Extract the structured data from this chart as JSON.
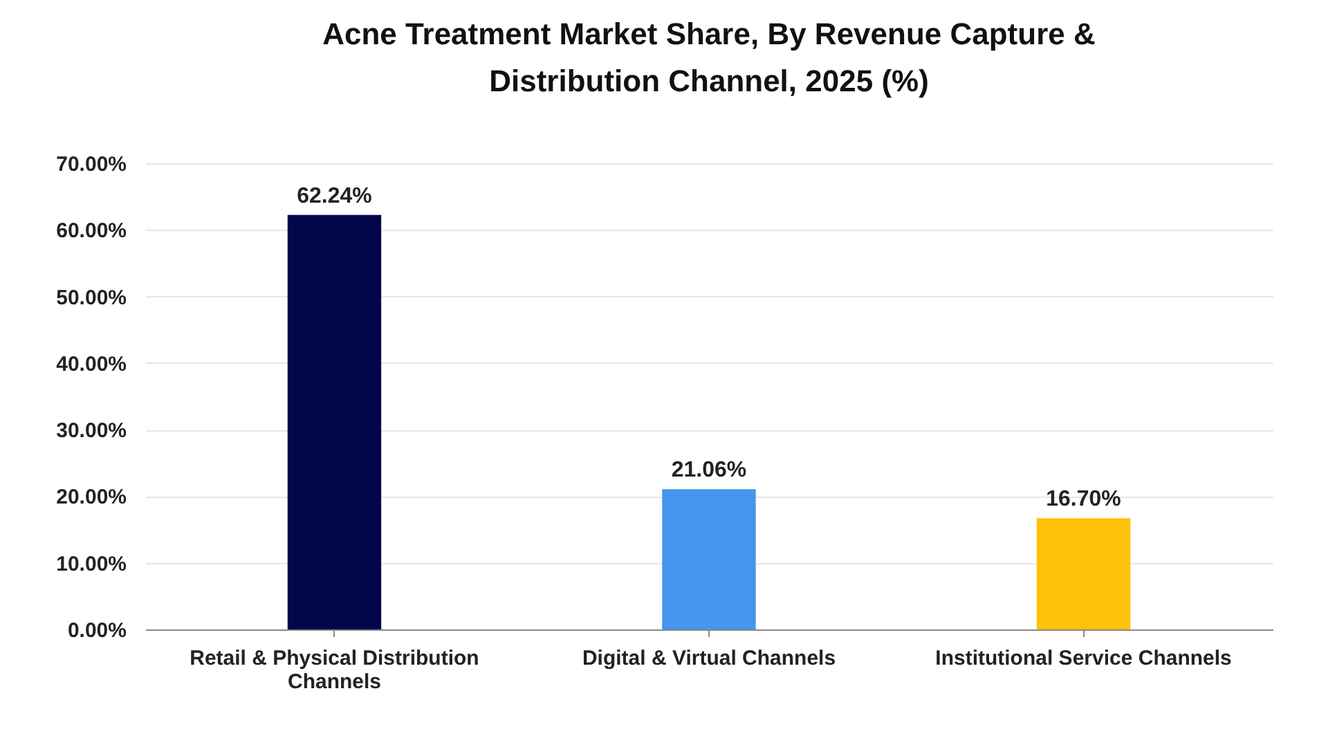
{
  "chart_data": {
    "type": "bar",
    "title": "Acne Treatment Market Share, By Revenue Capture & Distribution Channel, 2025 (%)",
    "categories": [
      "Retail & Physical Distribution Channels",
      "Digital & Virtual Channels",
      "Institutional Service Channels"
    ],
    "values": [
      62.24,
      21.06,
      16.7
    ],
    "colors": [
      "#02064a",
      "#4496ee",
      "#ffc20a"
    ],
    "value_labels": [
      "62.24%",
      "21.06%",
      "16.70%"
    ],
    "ylim": [
      0,
      70
    ],
    "yticks": [
      {
        "value": 0,
        "label": "0.00%"
      },
      {
        "value": 10,
        "label": "10.00%"
      },
      {
        "value": 20,
        "label": "20.00%"
      },
      {
        "value": 30,
        "label": "30.00%"
      },
      {
        "value": 40,
        "label": "40.00%"
      },
      {
        "value": 50,
        "label": "50.00%"
      },
      {
        "value": 60,
        "label": "60.00%"
      },
      {
        "value": 70,
        "label": "70.00%"
      }
    ],
    "grid": "y"
  }
}
